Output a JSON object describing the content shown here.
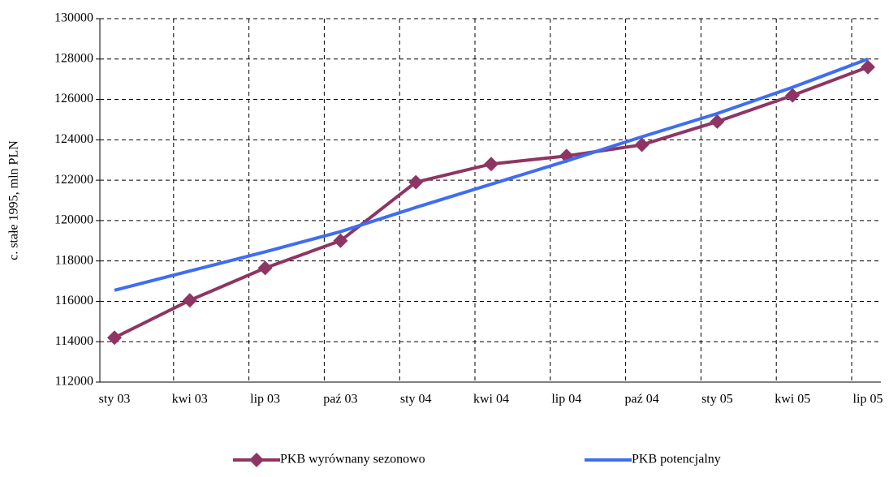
{
  "chart_data": {
    "type": "line",
    "y_label": "c. stałe 1995, mln PLN",
    "categories": [
      "sty 03",
      "kwi 03",
      "lip 03",
      "paź 03",
      "sty 04",
      "kwi 04",
      "lip 04",
      "paź 04",
      "sty 05",
      "kwi 05",
      "lip 05"
    ],
    "series": [
      {
        "name": "PKB wyrównany sezonowo",
        "color": "#8e3563",
        "marker": "diamond",
        "values": [
          114200,
          116050,
          117650,
          119000,
          121900,
          122800,
          123200,
          123750,
          124900,
          126200,
          127600
        ]
      },
      {
        "name": "PKB potencjalny",
        "color": "#3f6df2",
        "marker": null,
        "values": [
          116550,
          117500,
          118450,
          119450,
          120650,
          121800,
          122950,
          124150,
          125300,
          126600,
          128000
        ]
      }
    ],
    "ylim": [
      112000,
      130000
    ],
    "yticks": [
      112000,
      114000,
      116000,
      118000,
      120000,
      122000,
      124000,
      126000,
      128000,
      130000
    ],
    "grid": true,
    "legend": "bottom"
  }
}
